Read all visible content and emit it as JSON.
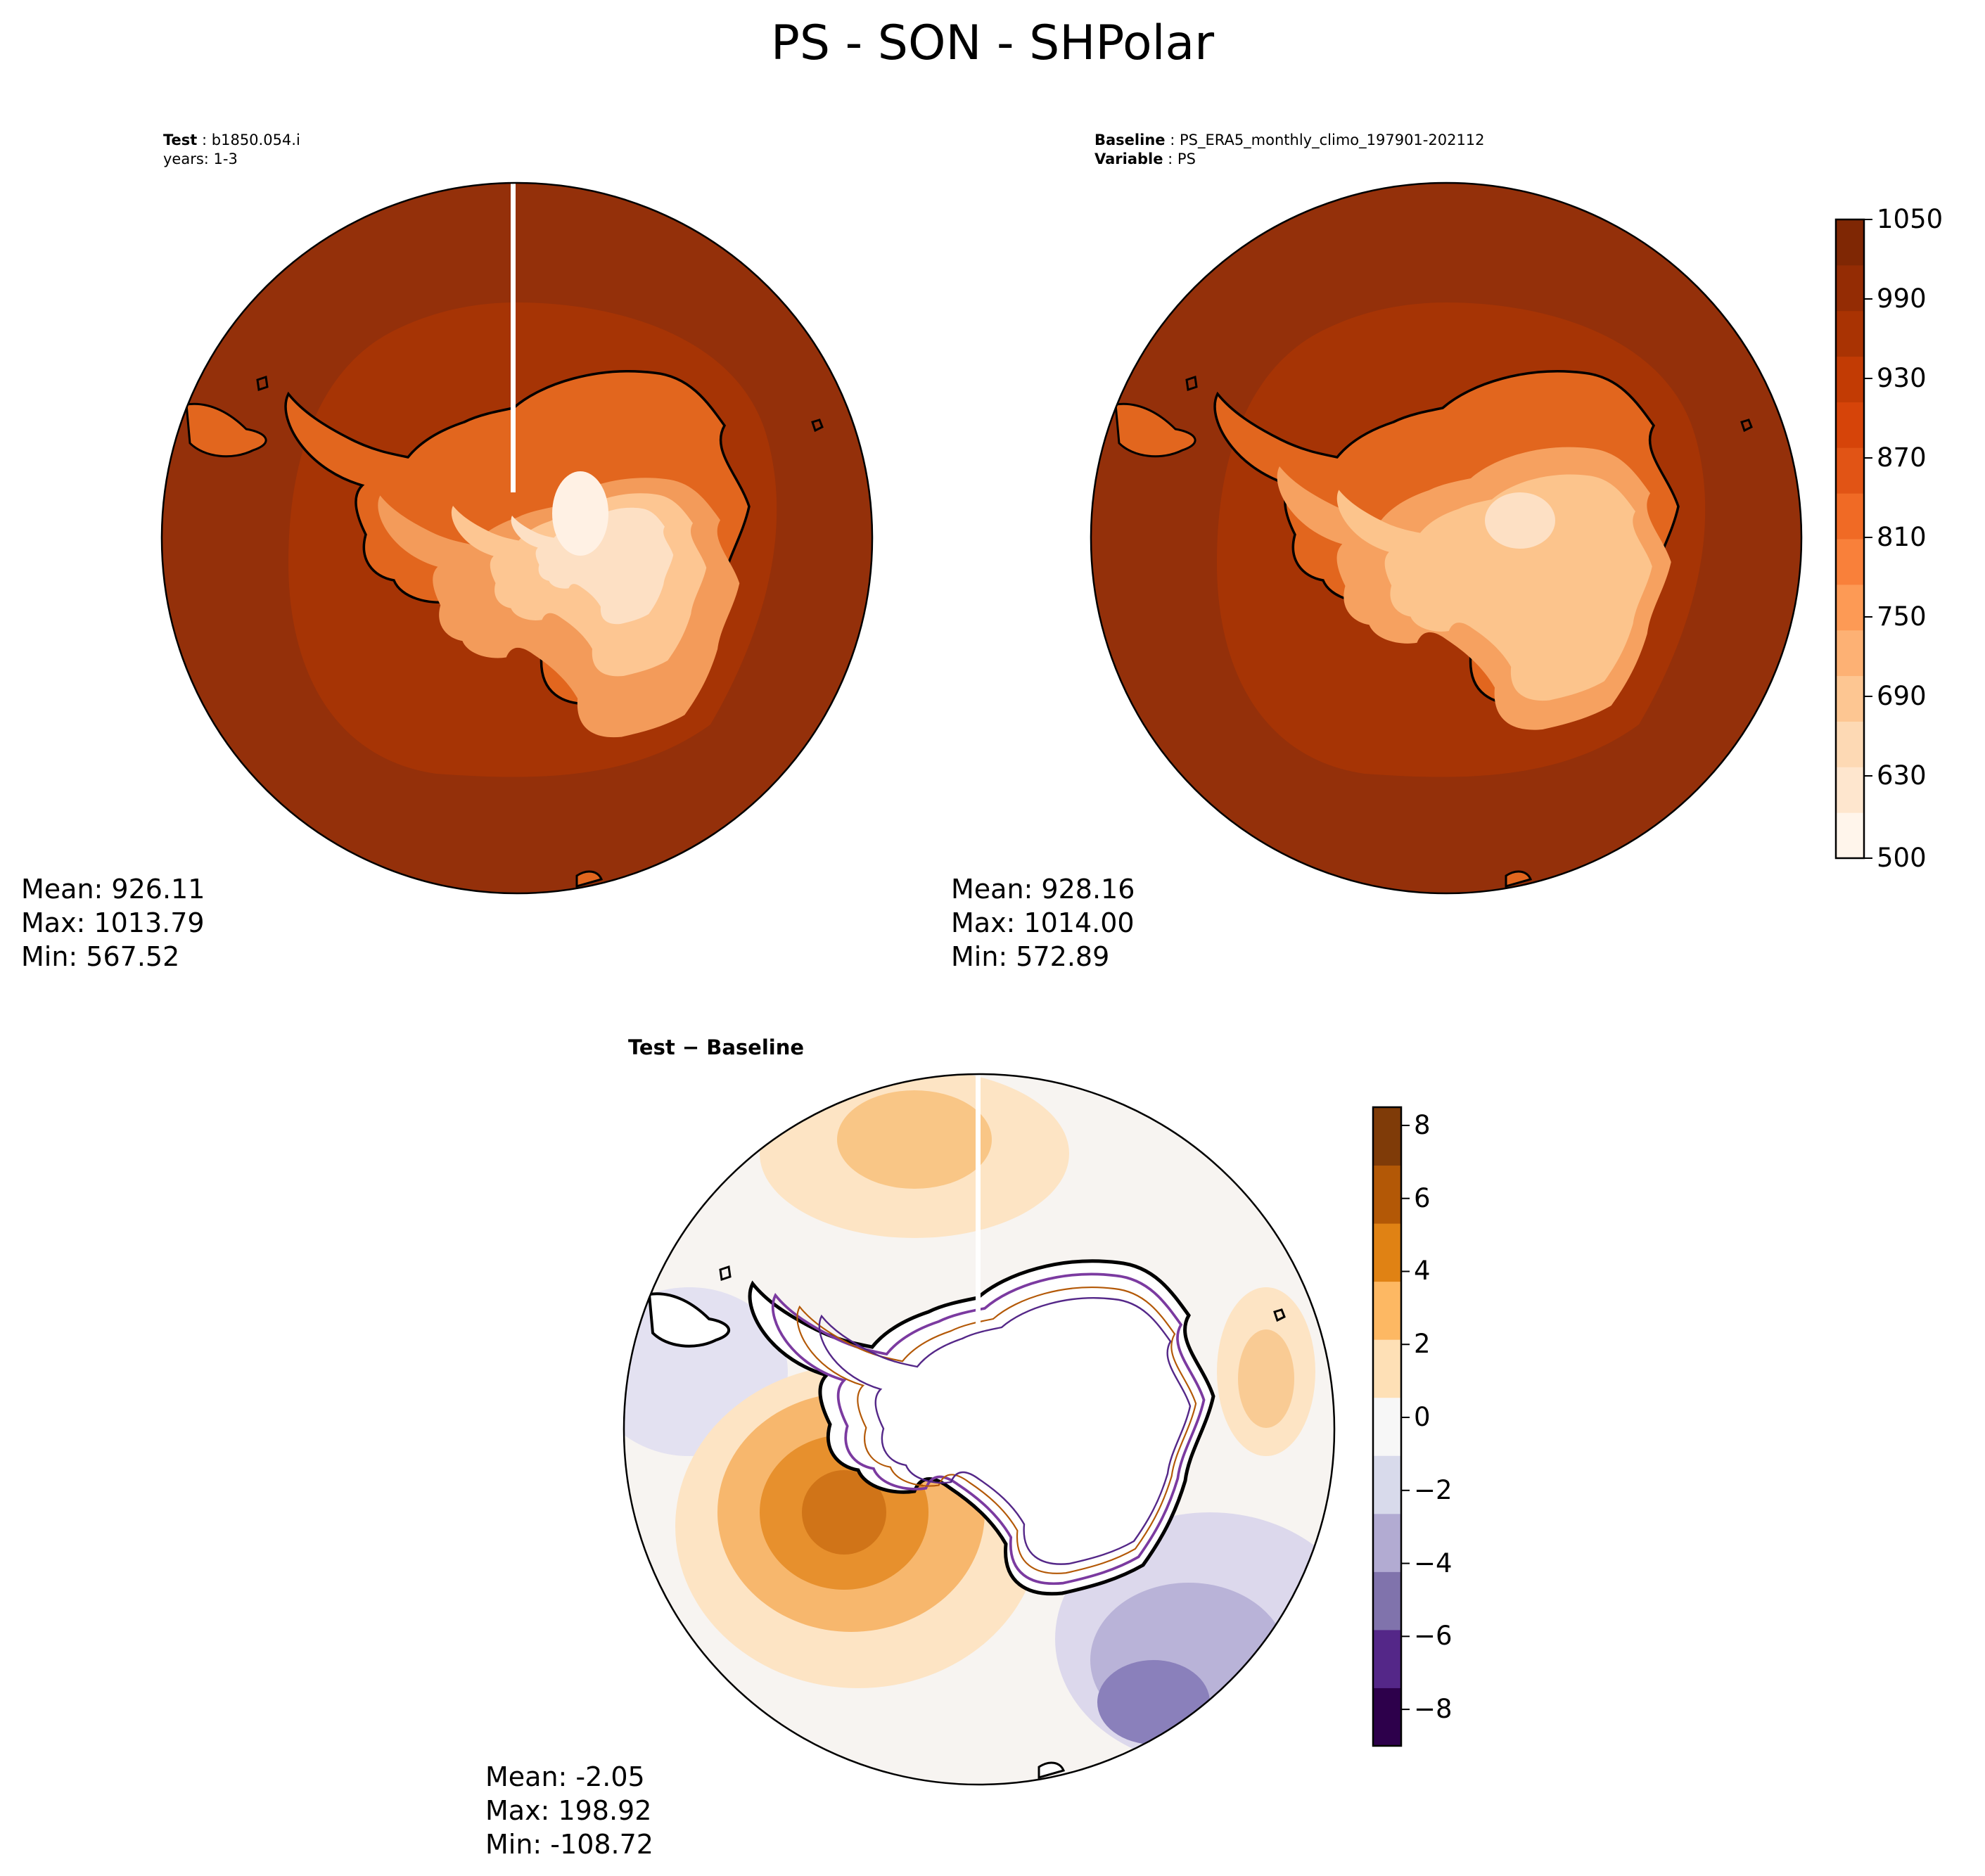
{
  "figure_title": "PS - SON - SHPolar",
  "panels": {
    "test": {
      "label_key": "Test",
      "label_value": "b1850.054.i",
      "years": "years: 1-3",
      "stats": {
        "mean": "Mean: 926.11",
        "max": "Max: 1013.79",
        "min": "Min: 567.52"
      }
    },
    "baseline": {
      "label_key": "Baseline",
      "label_value": "PS_ERA5_monthly_climo_197901-202112",
      "variable_key": "Variable",
      "variable_value": "PS",
      "stats": {
        "mean": "Mean: 928.16",
        "max": "Max: 1014.00",
        "min": "Min: 572.89"
      }
    },
    "diff": {
      "label": "Test − Baseline",
      "label_parts": [
        "Test",
        "Baseline"
      ],
      "stats": {
        "mean": "Mean: -2.05",
        "max": "Max: 198.92",
        "min": "Min: -108.72"
      }
    }
  },
  "colorbars": {
    "top": {
      "colormap": "Oranges",
      "range": [
        500,
        1050
      ],
      "ticks": [
        "1050",
        "990",
        "930",
        "870",
        "810",
        "750",
        "690",
        "630",
        "500"
      ],
      "colors": [
        "#fff5eb",
        "#fee6ce",
        "#fdd9b4",
        "#fdc692",
        "#fdb174",
        "#fd9a55",
        "#f9803a",
        "#f06a25",
        "#e15415",
        "#d64409",
        "#c23b04",
        "#a93303",
        "#942c04",
        "#7f2704"
      ]
    },
    "diff": {
      "colormap": "PuOr_r",
      "range": [
        -9,
        8.5
      ],
      "ticks": [
        "8",
        "6",
        "4",
        "2",
        "0",
        "−2",
        "−4",
        "−6",
        "−8"
      ],
      "colors": [
        "#2d004b",
        "#542788",
        "#8073ac",
        "#b2abd2",
        "#d8daeb",
        "#f7f7f7",
        "#fee0b6",
        "#fdb863",
        "#e08214",
        "#b35806",
        "#7f3b08"
      ]
    }
  },
  "map_colors": {
    "ocean_outer": "#94300a",
    "ocean_inner": "#a63405",
    "land_edge": "#e2661e",
    "land_mid": "#f8a868",
    "land_high": "#fde0c4",
    "land_peak": "#fff1e4",
    "coastline": "#000000",
    "missing_line": "#ffffff"
  },
  "diff_colors": {
    "background": "#f7f4f1",
    "positive_light": "#fde4c4",
    "positive_mid": "#f9bd78",
    "positive_strong": "#e7902d",
    "positive_max": "#d07418",
    "negative_light": "#e0def0",
    "negative_mid": "#c4c0e0",
    "negative_strong": "#8a80bb",
    "antarctic_interior": "#ffffff"
  }
}
